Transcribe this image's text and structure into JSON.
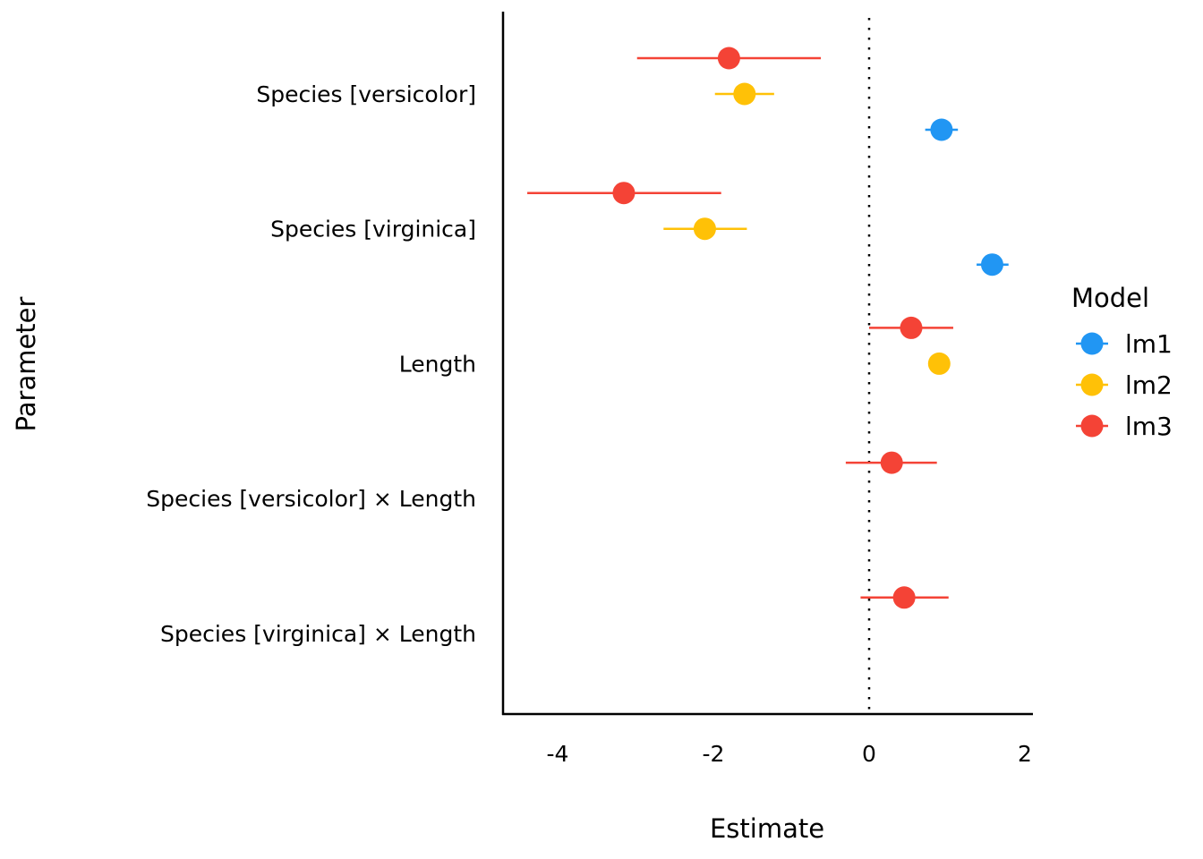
{
  "chart_data": {
    "type": "scatter",
    "subtype": "coefficient-plot-with-confidence-intervals",
    "title": "",
    "xlabel": "Estimate",
    "ylabel": "Parameter",
    "xlim": [
      -4.7,
      2.1
    ],
    "xticks": [
      -4,
      -2,
      0,
      2
    ],
    "xtick_labels": [
      "-4",
      "-2",
      "0",
      "2"
    ],
    "reference_line": {
      "x": 0,
      "style": "dotted"
    },
    "grid": false,
    "legend": {
      "title": "Model",
      "position": "right"
    },
    "categories": [
      "Species [versicolor]",
      "Species [virginica]",
      "Length",
      "Species [versicolor] × Length",
      "Species [virginica] × Length"
    ],
    "series": [
      {
        "name": "lm1",
        "color": "#2196F3",
        "points": [
          {
            "parameter": "Species [versicolor]",
            "estimate": 0.93,
            "ci_low": 0.72,
            "ci_high": 1.14
          },
          {
            "parameter": "Species [virginica]",
            "estimate": 1.58,
            "ci_low": 1.38,
            "ci_high": 1.79
          }
        ]
      },
      {
        "name": "lm2",
        "color": "#FFC107",
        "points": [
          {
            "parameter": "Species [versicolor]",
            "estimate": -1.6,
            "ci_low": -1.98,
            "ci_high": -1.22
          },
          {
            "parameter": "Species [virginica]",
            "estimate": -2.11,
            "ci_low": -2.64,
            "ci_high": -1.57
          },
          {
            "parameter": "Length",
            "estimate": 0.9,
            "ci_low": 0.82,
            "ci_high": 0.98
          }
        ]
      },
      {
        "name": "lm3",
        "color": "#F44336",
        "points": [
          {
            "parameter": "Species [versicolor]",
            "estimate": -1.8,
            "ci_low": -2.98,
            "ci_high": -0.62
          },
          {
            "parameter": "Species [virginica]",
            "estimate": -3.15,
            "ci_low": -4.39,
            "ci_high": -1.9
          },
          {
            "parameter": "Length",
            "estimate": 0.54,
            "ci_low": 0.0,
            "ci_high": 1.08
          },
          {
            "parameter": "Species [versicolor] × Length",
            "estimate": 0.29,
            "ci_low": -0.3,
            "ci_high": 0.87
          },
          {
            "parameter": "Species [virginica] × Length",
            "estimate": 0.45,
            "ci_low": -0.11,
            "ci_high": 1.02
          }
        ]
      }
    ]
  }
}
